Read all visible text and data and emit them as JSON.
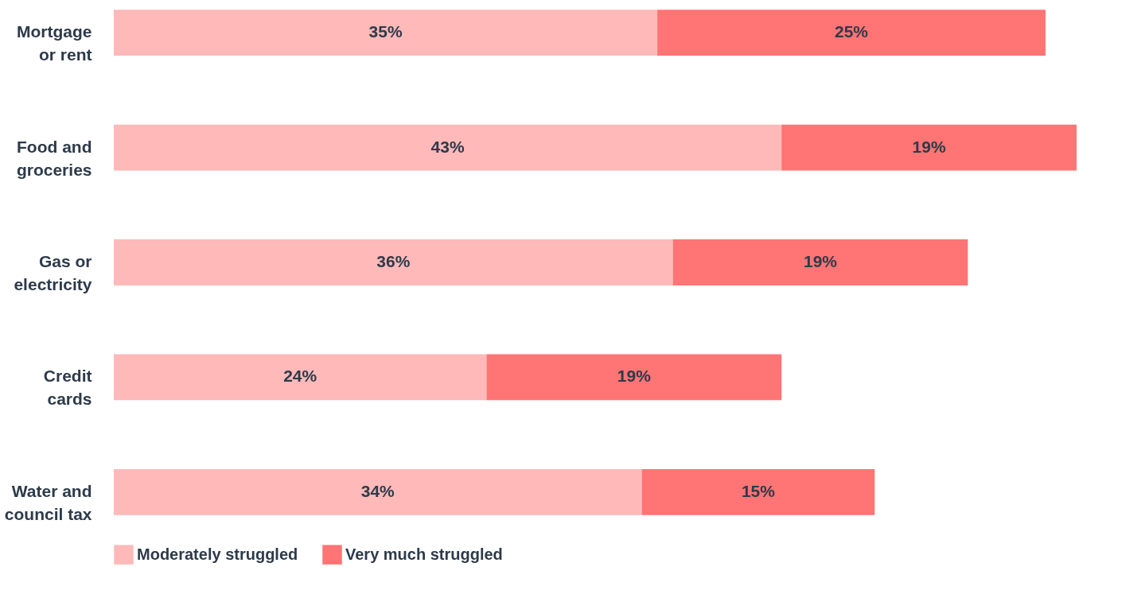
{
  "chart_data": {
    "type": "bar",
    "orientation": "horizontal",
    "stacked": true,
    "data_labels": true,
    "categories": [
      "Mortgage\nor rent",
      "Food and\ngroceries",
      "Gas or\nelectricity",
      "Credit\ncards",
      "Water and\ncouncil tax"
    ],
    "series": [
      {
        "name": "Moderately struggled",
        "color": "#ffb9b9",
        "values": [
          35,
          43,
          36,
          24,
          34
        ],
        "value_labels": [
          "35%",
          "43%",
          "36%",
          "24%",
          "34%"
        ]
      },
      {
        "name": "Very much struggled",
        "color": "#ff7474",
        "values": [
          25,
          19,
          19,
          19,
          15
        ],
        "value_labels": [
          "25%",
          "19%",
          "19%",
          "19%",
          "15%"
        ]
      }
    ],
    "legend": "bottom",
    "grid": false,
    "tick_labels": "y"
  }
}
